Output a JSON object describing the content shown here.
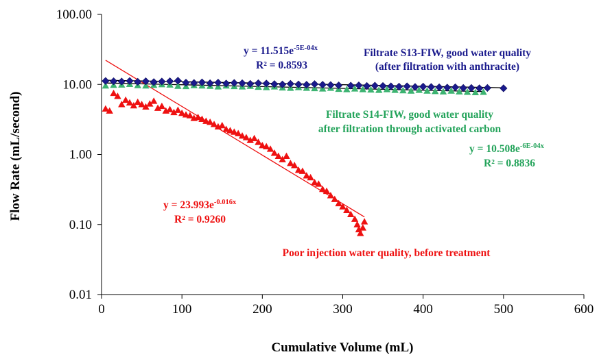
{
  "chart_data": {
    "type": "scatter",
    "title": "",
    "xlabel": "Cumulative  Volume  (mL)",
    "ylabel": "Flow Rate (mL/second)",
    "x_range": [
      0,
      600
    ],
    "y_range": [
      0.01,
      100
    ],
    "y_scale": "log",
    "x_ticks": [
      "0",
      "100",
      "200",
      "300",
      "400",
      "500",
      "600"
    ],
    "x_tick_values": [
      0,
      100,
      200,
      300,
      400,
      500,
      600
    ],
    "y_ticks": [
      "0.01",
      "0.10",
      "1.00",
      "10.00",
      "100.00"
    ],
    "y_tick_values": [
      0.01,
      0.1,
      1,
      10,
      100
    ],
    "grid": false,
    "colors": {
      "s13": "#1a1a8c",
      "s14": "#3cb371",
      "poor": "#ee1111",
      "trend": "#000000",
      "poor_trend": "#ee1111",
      "s14_text": "#23a35a"
    },
    "series": [
      {
        "key": "s13",
        "marker": "diamond",
        "x": [
          5,
          15,
          25,
          35,
          45,
          55,
          65,
          75,
          85,
          95,
          105,
          115,
          125,
          135,
          145,
          155,
          165,
          175,
          185,
          195,
          205,
          215,
          225,
          235,
          245,
          255,
          265,
          275,
          285,
          295,
          310,
          320,
          330,
          340,
          350,
          360,
          370,
          380,
          390,
          400,
          410,
          420,
          430,
          440,
          450,
          460,
          470,
          480,
          500
        ],
        "y": [
          11.2,
          11.1,
          11.0,
          11.2,
          10.9,
          11.1,
          10.8,
          11.0,
          11.1,
          11.3,
          10.6,
          10.5,
          10.7,
          10.4,
          10.6,
          10.3,
          10.5,
          10.4,
          10.2,
          10.4,
          10.3,
          10.1,
          10.0,
          10.2,
          10.0,
          9.9,
          10.1,
          9.9,
          9.8,
          9.7,
          9.6,
          9.7,
          9.5,
          9.6,
          9.5,
          9.4,
          9.3,
          9.4,
          9.2,
          9.3,
          9.2,
          9.1,
          9.0,
          9.1,
          8.9,
          8.9,
          8.8,
          8.9,
          8.8
        ]
      },
      {
        "key": "s14",
        "marker": "triangle",
        "x": [
          5,
          15,
          25,
          35,
          45,
          55,
          65,
          75,
          85,
          95,
          105,
          115,
          125,
          135,
          145,
          155,
          165,
          175,
          185,
          195,
          205,
          215,
          225,
          235,
          245,
          255,
          265,
          275,
          285,
          295,
          305,
          315,
          325,
          335,
          345,
          355,
          365,
          375,
          385,
          395,
          405,
          415,
          425,
          435,
          445,
          455,
          465,
          475
        ],
        "y": [
          9.6,
          9.8,
          9.9,
          10.1,
          9.7,
          9.6,
          9.8,
          10.0,
          9.9,
          9.5,
          9.4,
          9.7,
          9.6,
          9.5,
          9.3,
          9.6,
          9.4,
          9.3,
          9.5,
          9.2,
          9.1,
          9.3,
          9.0,
          8.9,
          9.1,
          8.9,
          8.8,
          8.7,
          8.9,
          8.6,
          8.5,
          8.7,
          8.5,
          8.4,
          8.3,
          8.5,
          8.3,
          8.2,
          8.1,
          8.3,
          8.1,
          8.0,
          7.9,
          8.1,
          7.9,
          7.8,
          7.7,
          7.8
        ]
      },
      {
        "key": "poor",
        "marker": "triangle",
        "x": [
          5,
          10,
          15,
          20,
          25,
          30,
          35,
          40,
          45,
          50,
          55,
          60,
          65,
          70,
          75,
          80,
          85,
          90,
          95,
          100,
          105,
          110,
          115,
          120,
          125,
          130,
          135,
          140,
          145,
          150,
          155,
          160,
          165,
          170,
          175,
          180,
          185,
          190,
          195,
          200,
          205,
          210,
          215,
          220,
          225,
          230,
          235,
          240,
          245,
          250,
          255,
          260,
          265,
          270,
          275,
          280,
          285,
          290,
          295,
          300,
          305,
          310,
          315,
          318,
          320,
          322,
          325,
          327
        ],
        "y": [
          4.5,
          4.2,
          7.5,
          6.8,
          5.2,
          6.0,
          5.5,
          5.0,
          5.6,
          5.2,
          4.8,
          5.3,
          5.8,
          4.6,
          4.9,
          4.2,
          4.4,
          4.0,
          4.3,
          3.9,
          3.7,
          3.6,
          3.3,
          3.4,
          3.2,
          3.0,
          2.9,
          2.7,
          2.5,
          2.6,
          2.3,
          2.2,
          2.1,
          2.0,
          1.85,
          1.75,
          1.6,
          1.7,
          1.5,
          1.35,
          1.3,
          1.2,
          1.05,
          0.95,
          0.85,
          0.95,
          0.75,
          0.7,
          0.6,
          0.58,
          0.5,
          0.47,
          0.4,
          0.38,
          0.32,
          0.3,
          0.26,
          0.23,
          0.2,
          0.18,
          0.16,
          0.14,
          0.12,
          0.1,
          0.085,
          0.075,
          0.09,
          0.11
        ]
      }
    ],
    "trendlines": [
      {
        "key": "s13",
        "a": 11.515,
        "b": -0.0005,
        "x_range": [
          5,
          500
        ]
      },
      {
        "key": "s14",
        "a": 10.508,
        "b": -0.0006,
        "x_range": [
          5,
          475
        ]
      },
      {
        "key": "poor",
        "a": 23.993,
        "b": -0.016,
        "x_range": [
          5,
          327
        ]
      }
    ],
    "annotations": {
      "s13_eq_base": "y = 11.515e",
      "s13_eq_exp": "-5E-04x",
      "s13_r2": "R² = 0.8593",
      "s13_label_1": "Filtrate S13-FIW, good water quality",
      "s13_label_2": "(after filtration with anthracite)",
      "s14_label_1": "Filtrate S14-FIW, good water quality",
      "s14_label_2": "after filtration through activated carbon",
      "s14_eq_base": "y = 10.508e",
      "s14_eq_exp": "-6E-04x",
      "s14_r2": "R² = 0.8836",
      "poor_eq_base": "y = 23.993e",
      "poor_eq_exp": "-0.016x",
      "poor_r2": "R² = 0.9260",
      "poor_label": "Poor injection water quality, before treatment"
    }
  }
}
